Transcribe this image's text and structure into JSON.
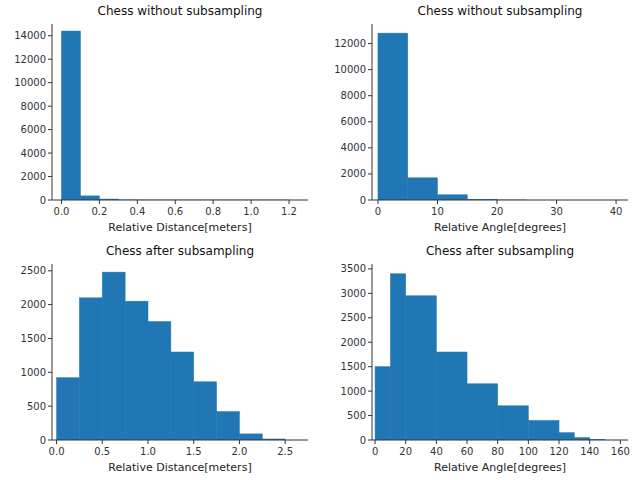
{
  "chart_data": [
    {
      "type": "histogram",
      "title": "Chess without subsampling",
      "x_label": "Relative Distance[meters]",
      "bins": [
        0.0,
        0.1,
        0.2,
        0.3,
        0.4,
        0.5,
        0.6,
        0.7,
        0.8,
        0.9,
        1.0,
        1.1,
        1.2
      ],
      "values": [
        14400,
        350,
        80,
        10,
        2,
        1,
        1,
        1,
        1,
        1,
        1,
        1
      ],
      "color": "#2077b4",
      "grid": false,
      "xlim": [
        -0.05,
        1.3
      ],
      "ylim": [
        0,
        15000
      ],
      "xticks": [
        {
          "value": 0,
          "label": "0.0"
        },
        0.2,
        0.4,
        0.6,
        0.8,
        {
          "value": 1,
          "label": "1.0"
        },
        1.2
      ],
      "yticks": [
        0,
        2000,
        4000,
        6000,
        8000,
        10000,
        12000,
        14000
      ]
    },
    {
      "type": "histogram",
      "title": "Chess without subsampling",
      "x_label": "Relative Angle[degrees]",
      "bins": [
        0,
        5,
        10,
        15,
        20,
        25
      ],
      "values": [
        12800,
        1700,
        400,
        60,
        5
      ],
      "color": "#2077b4",
      "grid": false,
      "xlim": [
        -1,
        42
      ],
      "ylim": [
        0,
        13500
      ],
      "xticks": [
        0,
        10,
        20,
        30,
        40
      ],
      "yticks": [
        0,
        2000,
        4000,
        6000,
        8000,
        10000,
        12000
      ]
    },
    {
      "type": "histogram",
      "title": "Chess after subsampling",
      "x_label": "Relative Distance[meters]",
      "bins": [
        0.0,
        0.25,
        0.5,
        0.75,
        1.0,
        1.25,
        1.5,
        1.75,
        2.0,
        2.25,
        2.5
      ],
      "values": [
        920,
        2100,
        2480,
        2050,
        1750,
        1300,
        860,
        420,
        90,
        15
      ],
      "color": "#2077b4",
      "grid": false,
      "xlim": [
        -0.05,
        2.75
      ],
      "ylim": [
        0,
        2600
      ],
      "xticks": [
        {
          "value": 0,
          "label": "0.0"
        },
        0.5,
        {
          "value": 1,
          "label": "1.0"
        },
        1.5,
        {
          "value": 2,
          "label": "2.0"
        },
        2.5
      ],
      "yticks": [
        0,
        500,
        1000,
        1500,
        2000,
        2500
      ]
    },
    {
      "type": "histogram",
      "title": "Chess after subsampling",
      "x_label": "Relative Angle[degrees]",
      "bins": [
        0,
        10,
        20,
        40,
        60,
        80,
        100,
        120,
        130,
        140,
        150
      ],
      "values": [
        1500,
        3400,
        2950,
        1800,
        1150,
        700,
        400,
        150,
        50,
        10
      ],
      "color": "#2077b4",
      "grid": false,
      "xlim": [
        -2,
        165
      ],
      "ylim": [
        0,
        3600
      ],
      "xticks": [
        0,
        20,
        40,
        60,
        80,
        100,
        120,
        140,
        160
      ],
      "yticks": [
        0,
        500,
        1000,
        1500,
        2000,
        2500,
        3000,
        3500
      ]
    }
  ]
}
